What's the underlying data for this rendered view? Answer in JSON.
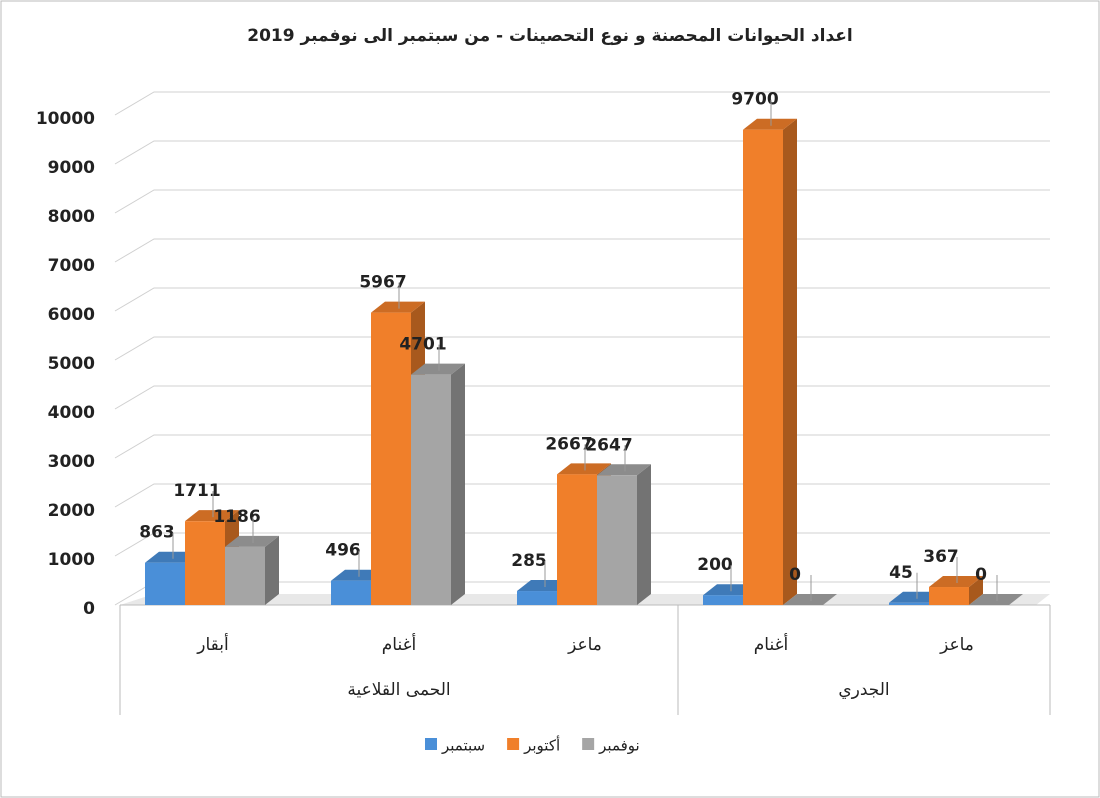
{
  "chart_data": {
    "type": "bar",
    "title": "اعداد الحيوانات المحصنة و نوع التحصينات - من سبتمبر الى نوفمبر 2019",
    "category_groups": [
      {
        "label": "الحمى القلاعية",
        "categories": [
          "أبقار",
          "أغنام",
          "ماعز"
        ]
      },
      {
        "label": "الجدري",
        "categories": [
          "أغنام",
          "ماعز"
        ]
      }
    ],
    "series": [
      {
        "name": "سبتمبر",
        "color": "#4a8fd8",
        "values": [
          863,
          496,
          285,
          200,
          45
        ]
      },
      {
        "name": "أكتوبر",
        "color": "#f07f2a",
        "values": [
          1711,
          5967,
          2667,
          9700,
          367
        ]
      },
      {
        "name": "نوفمبر",
        "color": "#a5a5a5",
        "values": [
          1186,
          4701,
          2647,
          0,
          0
        ]
      }
    ],
    "ylim": [
      0,
      10000
    ],
    "yticks": [
      0,
      1000,
      2000,
      3000,
      4000,
      5000,
      6000,
      7000,
      8000,
      9000,
      10000
    ],
    "grid": true,
    "legend": "bottom"
  }
}
